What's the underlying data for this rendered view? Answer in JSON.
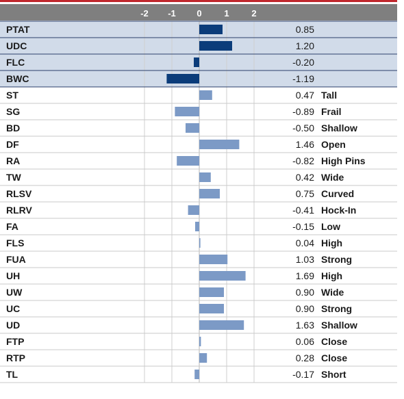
{
  "chart_data": {
    "type": "bar",
    "orientation": "horizontal",
    "x_ticks": [
      -2,
      -1,
      0,
      1,
      2
    ],
    "xlim": [
      -2.1,
      2.1
    ],
    "grid": true,
    "highlighted_rows": 4,
    "rows": [
      {
        "label": "PTAT",
        "value": 0.85,
        "value_text": "0.85",
        "desc": ""
      },
      {
        "label": "UDC",
        "value": 1.2,
        "value_text": "1.20",
        "desc": ""
      },
      {
        "label": "FLC",
        "value": -0.2,
        "value_text": "-0.20",
        "desc": ""
      },
      {
        "label": "BWC",
        "value": -1.19,
        "value_text": "-1.19",
        "desc": ""
      },
      {
        "label": "ST",
        "value": 0.47,
        "value_text": "0.47",
        "desc": "Tall"
      },
      {
        "label": "SG",
        "value": -0.89,
        "value_text": "-0.89",
        "desc": "Frail"
      },
      {
        "label": "BD",
        "value": -0.5,
        "value_text": "-0.50",
        "desc": "Shallow"
      },
      {
        "label": "DF",
        "value": 1.46,
        "value_text": "1.46",
        "desc": "Open"
      },
      {
        "label": "RA",
        "value": -0.82,
        "value_text": "-0.82",
        "desc": "High Pins"
      },
      {
        "label": "TW",
        "value": 0.42,
        "value_text": "0.42",
        "desc": "Wide"
      },
      {
        "label": "RLSV",
        "value": 0.75,
        "value_text": "0.75",
        "desc": "Curved"
      },
      {
        "label": "RLRV",
        "value": -0.41,
        "value_text": "-0.41",
        "desc": "Hock-In"
      },
      {
        "label": "FA",
        "value": -0.15,
        "value_text": "-0.15",
        "desc": "Low"
      },
      {
        "label": "FLS",
        "value": 0.04,
        "value_text": "0.04",
        "desc": "High"
      },
      {
        "label": "FUA",
        "value": 1.03,
        "value_text": "1.03",
        "desc": "Strong"
      },
      {
        "label": "UH",
        "value": 1.69,
        "value_text": "1.69",
        "desc": "High"
      },
      {
        "label": "UW",
        "value": 0.9,
        "value_text": "0.90",
        "desc": "Wide"
      },
      {
        "label": "UC",
        "value": 0.9,
        "value_text": "0.90",
        "desc": "Strong"
      },
      {
        "label": "UD",
        "value": 1.63,
        "value_text": "1.63",
        "desc": "Shallow"
      },
      {
        "label": "FTP",
        "value": 0.06,
        "value_text": "0.06",
        "desc": "Close"
      },
      {
        "label": "RTP",
        "value": 0.28,
        "value_text": "0.28",
        "desc": "Close"
      },
      {
        "label": "TL",
        "value": -0.17,
        "value_text": "-0.17",
        "desc": "Short"
      }
    ]
  },
  "colors": {
    "header_bg": "#7f7f7f",
    "top_accent": "#c0272d",
    "highlight_row_bg": "#d1dbe9",
    "highlight_bar": "#0b3c7a",
    "normal_bar": "#7c9ac6",
    "row_divider": "#c9c9c9",
    "highlight_divider": "#2a3f6b",
    "grid_line": "#cfcfcf"
  }
}
